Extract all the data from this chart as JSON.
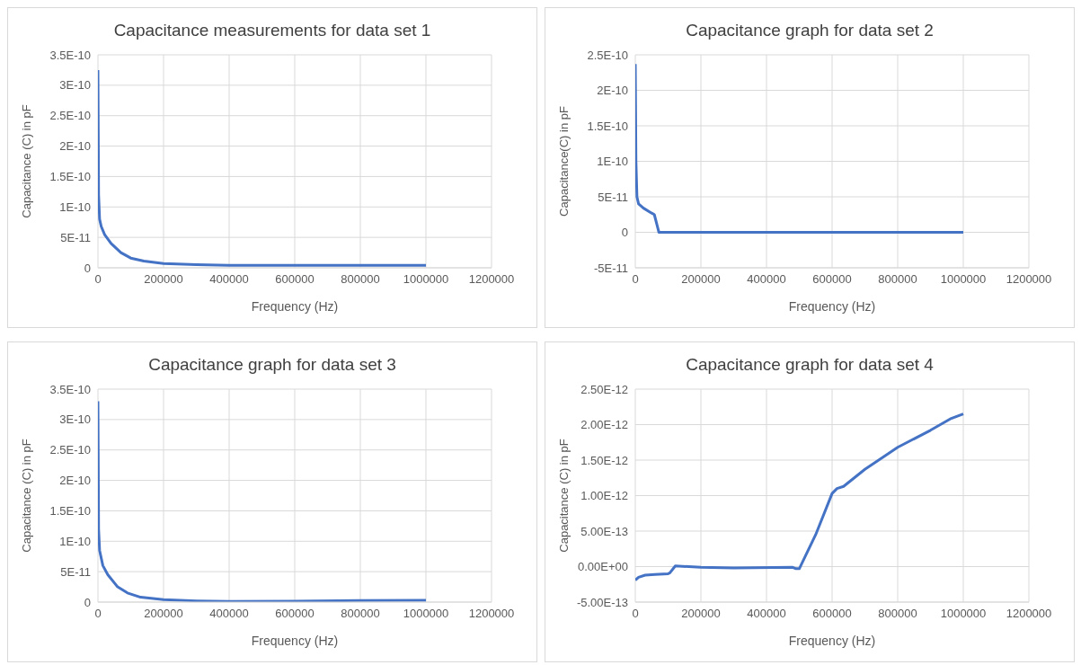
{
  "chart_data": [
    {
      "type": "line",
      "title": "Capacitance  measurements  for data set 1",
      "xlabel": "Frequency (Hz)",
      "ylabel": "Capacitance (C) in pF",
      "grid": true,
      "legend": false,
      "marker": "none",
      "xlim": [
        0,
        1200000
      ],
      "xticks": [
        0,
        200000,
        400000,
        600000,
        800000,
        1000000,
        1200000
      ],
      "ylim": [
        0,
        3.5e-10
      ],
      "yticks": [
        {
          "value": 0,
          "label": "0"
        },
        {
          "value": 5e-11,
          "label": "5E-11"
        },
        {
          "value": 1e-10,
          "label": "1E-10"
        },
        {
          "value": 1.5e-10,
          "label": "1.5E-10"
        },
        {
          "value": 2e-10,
          "label": "2E-10"
        },
        {
          "value": 2.5e-10,
          "label": "2.5E-10"
        },
        {
          "value": 3e-10,
          "label": "3E-10"
        },
        {
          "value": 3.5e-10,
          "label": "3.5E-10"
        }
      ],
      "series": [
        {
          "color": "#4472c4",
          "x": [
            0,
            2000,
            5000,
            10000,
            20000,
            40000,
            70000,
            100000,
            140000,
            200000,
            300000,
            400000,
            600000,
            800000,
            1000000
          ],
          "values": [
            3.25e-10,
            1.2e-10,
            8e-11,
            6.8e-11,
            5.5e-11,
            4e-11,
            2.5e-11,
            1.6e-11,
            1.1e-11,
            7e-12,
            5e-12,
            4e-12,
            4e-12,
            4e-12,
            4e-12
          ]
        }
      ]
    },
    {
      "type": "line",
      "title": "Capacitance  graph for data set 2",
      "xlabel": "Frequency (Hz)",
      "ylabel": "Capacitance(C) in pF",
      "grid": true,
      "legend": false,
      "marker": "none",
      "xlim": [
        0,
        1200000
      ],
      "xticks": [
        0,
        200000,
        400000,
        600000,
        800000,
        1000000,
        1200000
      ],
      "ylim": [
        -5e-11,
        2.5e-10
      ],
      "yticks": [
        {
          "value": -5e-11,
          "label": "-5E-11"
        },
        {
          "value": 0,
          "label": "0"
        },
        {
          "value": 5e-11,
          "label": "5E-11"
        },
        {
          "value": 1e-10,
          "label": "1E-10"
        },
        {
          "value": 1.5e-10,
          "label": "1.5E-10"
        },
        {
          "value": 2e-10,
          "label": "2E-10"
        },
        {
          "value": 2.5e-10,
          "label": "2.5E-10"
        }
      ],
      "series": [
        {
          "color": "#4472c4",
          "x": [
            0,
            2000,
            5000,
            10000,
            25000,
            50000,
            58000,
            72000,
            200000,
            400000,
            600000,
            800000,
            1000000
          ],
          "values": [
            2.37e-10,
            1e-10,
            5e-11,
            4e-11,
            3.4e-11,
            2.7e-11,
            2.5e-11,
            0,
            0,
            0,
            0,
            0,
            0
          ]
        }
      ]
    },
    {
      "type": "line",
      "title": "Capacitance  graph for data set 3",
      "xlabel": "Frequency (Hz)",
      "ylabel": "Capacitance (C) in pF",
      "grid": true,
      "legend": false,
      "marker": "none",
      "xlim": [
        0,
        1200000
      ],
      "xticks": [
        0,
        200000,
        400000,
        600000,
        800000,
        1000000,
        1200000
      ],
      "ylim": [
        0,
        3.5e-10
      ],
      "yticks": [
        {
          "value": 0,
          "label": "0"
        },
        {
          "value": 5e-11,
          "label": "5E-11"
        },
        {
          "value": 1e-10,
          "label": "1E-10"
        },
        {
          "value": 1.5e-10,
          "label": "1.5E-10"
        },
        {
          "value": 2e-10,
          "label": "2E-10"
        },
        {
          "value": 2.5e-10,
          "label": "2.5E-10"
        },
        {
          "value": 3e-10,
          "label": "3E-10"
        },
        {
          "value": 3.5e-10,
          "label": "3.5E-10"
        }
      ],
      "series": [
        {
          "color": "#4472c4",
          "x": [
            0,
            2000,
            5000,
            15000,
            30000,
            60000,
            90000,
            130000,
            200000,
            300000,
            400000,
            600000,
            800000,
            1000000
          ],
          "values": [
            3.3e-10,
            1.2e-10,
            8.5e-11,
            6e-11,
            4.5e-11,
            2.5e-11,
            1.5e-11,
            8e-12,
            4e-12,
            2e-12,
            1e-12,
            1.5e-12,
            2.5e-12,
            3e-12
          ]
        }
      ]
    },
    {
      "type": "line",
      "title": "Capacitance  graph for data set 4",
      "xlabel": "Frequency (Hz)",
      "ylabel": "Capacitance (C) in pF",
      "grid": true,
      "legend": false,
      "marker": "none",
      "xlim": [
        0,
        1200000
      ],
      "xticks": [
        0,
        200000,
        400000,
        600000,
        800000,
        1000000,
        1200000
      ],
      "ylim": [
        -5e-13,
        2.5e-12
      ],
      "yticks": [
        {
          "value": -5e-13,
          "label": "-5.00E-13"
        },
        {
          "value": 0,
          "label": "0.00E+00"
        },
        {
          "value": 5e-13,
          "label": "5.00E-13"
        },
        {
          "value": 1e-12,
          "label": "1.00E-12"
        },
        {
          "value": 1.5e-12,
          "label": "1.50E-12"
        },
        {
          "value": 2e-12,
          "label": "2.00E-12"
        },
        {
          "value": 2.5e-12,
          "label": "2.50E-12"
        }
      ],
      "series": [
        {
          "color": "#4472c4",
          "x": [
            0,
            10000,
            30000,
            60000,
            100000,
            105000,
            122000,
            200000,
            300000,
            480000,
            490000,
            500000,
            550000,
            600000,
            615000,
            635000,
            700000,
            800000,
            900000,
            960000,
            1000000
          ],
          "values": [
            -1.9e-13,
            -1.5e-13,
            -1.2e-13,
            -1.1e-13,
            -1e-13,
            -9e-14,
            1e-14,
            -1e-14,
            -2e-14,
            -1e-14,
            -3e-14,
            -3e-14,
            4.5e-13,
            1.03e-12,
            1.1e-12,
            1.13e-12,
            1.37e-12,
            1.68e-12,
            1.92e-12,
            2.08e-12,
            2.15e-12
          ]
        }
      ]
    }
  ]
}
